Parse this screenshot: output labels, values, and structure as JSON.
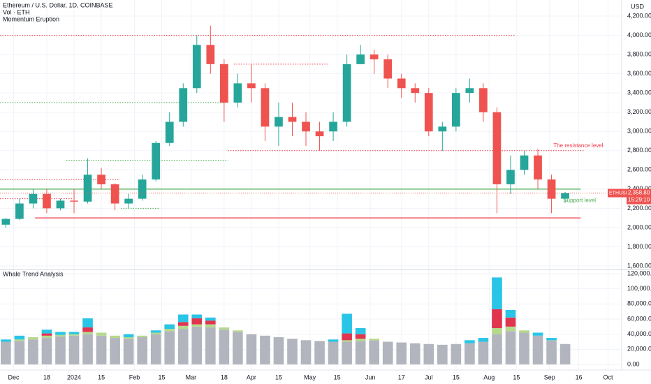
{
  "chart_data": [
    {
      "type": "candlestick",
      "title": "Ethereum / U.S. Dollar, 1D, COINBASE",
      "subtitles": [
        "Vol · ETH",
        "Momentum Eruption"
      ],
      "y_axis_label": "USD",
      "x": [
        -4,
        3,
        10,
        17,
        24,
        31,
        38,
        45,
        52,
        59,
        66,
        73,
        80,
        87,
        94,
        101,
        108,
        115,
        122,
        129,
        136,
        143,
        150,
        157,
        164,
        171,
        178,
        185,
        192,
        199,
        206,
        213,
        220,
        227,
        234,
        241,
        248,
        255,
        262,
        269,
        276,
        283
      ],
      "open": [
        2030,
        2090,
        2250,
        2350,
        2200,
        2280,
        2270,
        2550,
        2450,
        2250,
        2300,
        2500,
        2880,
        3100,
        3450,
        3900,
        3700,
        3300,
        3500,
        3450,
        3050,
        3150,
        3100,
        3000,
        3000,
        3100,
        3700,
        3800,
        3750,
        3550,
        3450,
        3400,
        3000,
        3050,
        3400,
        3450,
        3200,
        2450,
        2600,
        2750,
        2500,
        2300
      ],
      "high": [
        2100,
        2300,
        2400,
        2400,
        2300,
        2400,
        2720,
        2620,
        2460,
        2350,
        2550,
        2900,
        3200,
        3500,
        4000,
        4100,
        3750,
        3600,
        3700,
        3500,
        3300,
        3300,
        3200,
        3100,
        3200,
        3800,
        3900,
        3850,
        3800,
        3600,
        3500,
        3450,
        3100,
        3450,
        3550,
        3500,
        3250,
        2750,
        2800,
        2820,
        2550,
        2370
      ],
      "low": [
        2000,
        2080,
        2200,
        2150,
        2180,
        2150,
        2250,
        2400,
        2180,
        2200,
        2280,
        2480,
        2850,
        3050,
        3400,
        3600,
        3100,
        3250,
        3300,
        2900,
        2850,
        2950,
        2850,
        2800,
        2900,
        3050,
        3700,
        3600,
        3450,
        3350,
        3300,
        2950,
        2800,
        3000,
        3300,
        3100,
        2150,
        2350,
        2550,
        2400,
        2150,
        2260
      ],
      "close": [
        2090,
        2250,
        2350,
        2200,
        2280,
        2270,
        2550,
        2450,
        2250,
        2300,
        2500,
        2880,
        3100,
        3450,
        3900,
        3700,
        3300,
        3500,
        3450,
        3050,
        3150,
        3100,
        3000,
        2950,
        3100,
        3700,
        3800,
        3750,
        3550,
        3450,
        3400,
        3000,
        3050,
        3400,
        3450,
        3200,
        2450,
        2600,
        2750,
        2500,
        2300,
        2358.8
      ],
      "up_color": "#26a69a",
      "down_color": "#ef5350",
      "last_price": {
        "value": 2358.8,
        "label": "2,358.80"
      },
      "symbol_tag": "ETHUSD",
      "countdown": "15:29:10",
      "levels": [
        {
          "value": 4000,
          "from": -7,
          "to": 257,
          "color": "#f23645",
          "style": "dotted"
        },
        {
          "value": 3700,
          "from": 113,
          "to": 162,
          "color": "#f23645",
          "style": "dotted"
        },
        {
          "value": 3300,
          "from": -7,
          "to": 110,
          "color": "#4caf50",
          "style": "dotted"
        },
        {
          "value": 2800,
          "from": 110,
          "to": 293,
          "color": "#f23645",
          "style": "dotted"
        },
        {
          "value": 2700,
          "from": 27,
          "to": 110,
          "color": "#4caf50",
          "style": "dotted"
        },
        {
          "value": 2500,
          "from": -7,
          "to": 54,
          "color": "#f23645",
          "style": "dotted"
        },
        {
          "value": 2400,
          "from": -7,
          "to": 291,
          "color": "#4caf50",
          "style": "solid"
        },
        {
          "value": 2300,
          "from": -7,
          "to": 30,
          "color": "#f23645",
          "style": "dotted"
        },
        {
          "value": 2200,
          "from": 55,
          "to": 75,
          "color": "#4caf50",
          "style": "dotted"
        },
        {
          "value": 2100,
          "from": 11,
          "to": 291,
          "color": "#f23645",
          "style": "solid"
        }
      ],
      "annotations": [
        {
          "text": "The resistance level",
          "x": 277,
          "y": 2850,
          "color": "#f23645"
        },
        {
          "text": "Support level",
          "x": 282,
          "y": 2280,
          "color": "#4caf50"
        }
      ],
      "xlim": [
        -7,
        312
      ],
      "xticks": [
        {
          "value": 0,
          "label": "Dec"
        },
        {
          "value": 17,
          "label": "18"
        },
        {
          "value": 31,
          "label": "2024"
        },
        {
          "value": 45,
          "label": "15"
        },
        {
          "value": 62,
          "label": "Feb"
        },
        {
          "value": 76,
          "label": "15"
        },
        {
          "value": 91,
          "label": "Mar"
        },
        {
          "value": 108,
          "label": "18"
        },
        {
          "value": 122,
          "label": "Apr"
        },
        {
          "value": 136,
          "label": "15"
        },
        {
          "value": 152,
          "label": "May"
        },
        {
          "value": 166,
          "label": "15"
        },
        {
          "value": 183,
          "label": "Jun"
        },
        {
          "value": 199,
          "label": "17"
        },
        {
          "value": 213,
          "label": "Jul"
        },
        {
          "value": 227,
          "label": "15"
        },
        {
          "value": 244,
          "label": "Aug"
        },
        {
          "value": 258,
          "label": "15"
        },
        {
          "value": 275,
          "label": "Sep"
        },
        {
          "value": 290,
          "label": "16"
        },
        {
          "value": 305,
          "label": "Oct"
        }
      ],
      "ylim": [
        1571,
        4367
      ],
      "yticks": [
        {
          "value": 1600,
          "label": "1,600.00"
        },
        {
          "value": 1800,
          "label": "1,800.00"
        },
        {
          "value": 2000,
          "label": "2,000.00"
        },
        {
          "value": 2200,
          "label": "2,200.00"
        },
        {
          "value": 2400,
          "label": "2,400.00"
        },
        {
          "value": 2600,
          "label": "2,600.00"
        },
        {
          "value": 2800,
          "label": "2,800.00"
        },
        {
          "value": 3000,
          "label": "3,000.00"
        },
        {
          "value": 3200,
          "label": "3,200.00"
        },
        {
          "value": 3400,
          "label": "3,400.00"
        },
        {
          "value": 3600,
          "label": "3,600.00"
        },
        {
          "value": 3800,
          "label": "3,800.00"
        },
        {
          "value": 4000,
          "label": "4,000.00"
        },
        {
          "value": 4200,
          "label": "4,200.00"
        }
      ],
      "grid": true
    },
    {
      "type": "stacked_bar",
      "title": "Whale Trend Analysis",
      "x": [
        -4,
        3,
        10,
        17,
        24,
        31,
        38,
        45,
        52,
        59,
        66,
        73,
        80,
        87,
        94,
        101,
        108,
        115,
        122,
        129,
        136,
        143,
        150,
        157,
        164,
        171,
        178,
        185,
        192,
        199,
        206,
        213,
        220,
        227,
        234,
        241,
        248,
        255,
        262,
        269,
        276,
        283
      ],
      "series": [
        {
          "color": "#b2b5be",
          "values": [
            30000,
            31000,
            33000,
            35000,
            37000,
            38000,
            40000,
            38000,
            35000,
            34000,
            36000,
            40000,
            44000,
            47000,
            50000,
            49000,
            46000,
            43000,
            40000,
            38000,
            36000,
            34000,
            32000,
            31000,
            30000,
            30000,
            31000,
            32000,
            30000,
            29000,
            28000,
            27000,
            26000,
            27000,
            28000,
            30000,
            40000,
            44000,
            42000,
            38000,
            32000,
            27000
          ]
        },
        {
          "color": "#b5d98c",
          "values": [
            0,
            2000,
            3000,
            3000,
            2000,
            2000,
            3000,
            4000,
            3000,
            2000,
            2000,
            2000,
            3000,
            4000,
            3000,
            4000,
            3000,
            2000,
            0,
            0,
            0,
            0,
            0,
            0,
            0,
            2000,
            3000,
            2000,
            0,
            0,
            0,
            0,
            0,
            0,
            0,
            0,
            8000,
            6000,
            3000,
            0,
            0,
            0
          ]
        },
        {
          "color": "#e0344f",
          "values": [
            0,
            0,
            0,
            3000,
            0,
            0,
            6000,
            0,
            0,
            0,
            0,
            0,
            0,
            5000,
            8000,
            5000,
            0,
            0,
            0,
            0,
            0,
            0,
            0,
            0,
            0,
            9000,
            6000,
            0,
            0,
            0,
            0,
            0,
            0,
            0,
            0,
            0,
            25000,
            12000,
            0,
            0,
            0,
            0
          ]
        },
        {
          "color": "#29c5e6",
          "values": [
            3000,
            5000,
            0,
            5000,
            4000,
            3000,
            12000,
            0,
            0,
            4000,
            0,
            3000,
            6000,
            10000,
            5000,
            4000,
            0,
            0,
            0,
            0,
            0,
            0,
            0,
            0,
            3000,
            26000,
            8000,
            0,
            0,
            0,
            0,
            0,
            0,
            0,
            4000,
            5000,
            42000,
            10000,
            0,
            4000,
            3000,
            0
          ]
        }
      ],
      "xlim": [
        -7,
        312
      ],
      "ylim": [
        -7400,
        124600
      ],
      "yticks": [
        {
          "value": 0,
          "label": "0.00"
        },
        {
          "value": 20000,
          "label": "20,000.00"
        },
        {
          "value": 40000,
          "label": "40,000.00"
        },
        {
          "value": 60000,
          "label": "60,000.00"
        },
        {
          "value": 80000,
          "label": "80,000.00"
        },
        {
          "value": 100000,
          "label": "100,000.00"
        },
        {
          "value": 120000,
          "label": "120,000.00"
        }
      ],
      "grid": true
    }
  ]
}
